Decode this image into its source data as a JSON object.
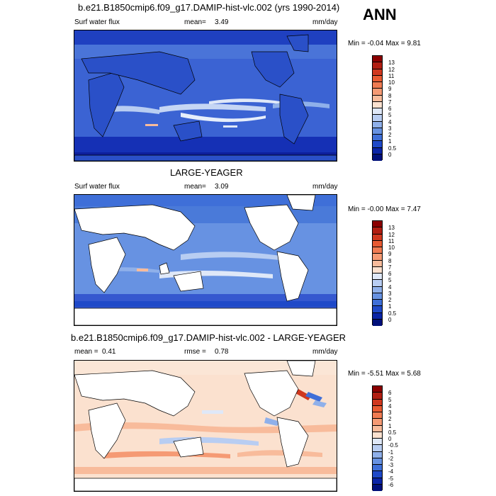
{
  "season": "ANN",
  "panels": [
    {
      "title": "b.e21.B1850cmip6.f09_g17.DAMIP-hist-vlc.002 (yrs 1990-2014)",
      "left_label": "Surf water flux",
      "mean_label": "mean=",
      "mean_value": "3.49",
      "right_label": "mm/day",
      "min_label": "Min = ",
      "min_value": "-0.04",
      "max_label": "Max = ",
      "max_value": "9.81",
      "colorbar_labels": [
        "13",
        "12",
        "11",
        "10",
        "9",
        "8",
        "7",
        "6",
        "5",
        "4",
        "3",
        "2",
        "1",
        "0.5",
        "0"
      ],
      "colorbar_colors": [
        "#8b0000",
        "#b11e12",
        "#d0381f",
        "#e85a32",
        "#f07b52",
        "#f59a74",
        "#f8bb9b",
        "#fbe1cf",
        "#dfe8f8",
        "#b8cdf2",
        "#8fb0ea",
        "#6792e2",
        "#3f6fd8",
        "#1f49c8",
        "#0a24a6",
        "#00107a"
      ]
    },
    {
      "title": "LARGE-YEAGER",
      "left_label": "Surf water flux",
      "mean_label": "mean=",
      "mean_value": "3.09",
      "right_label": "mm/day",
      "min_label": "Min = ",
      "min_value": "-0.00",
      "max_label": "Max = ",
      "max_value": "7.47",
      "colorbar_labels": [
        "13",
        "12",
        "11",
        "10",
        "9",
        "8",
        "7",
        "6",
        "5",
        "4",
        "3",
        "2",
        "1",
        "0.5",
        "0"
      ],
      "colorbar_colors": [
        "#8b0000",
        "#b11e12",
        "#d0381f",
        "#e85a32",
        "#f07b52",
        "#f59a74",
        "#f8bb9b",
        "#fbe1cf",
        "#dfe8f8",
        "#b8cdf2",
        "#8fb0ea",
        "#6792e2",
        "#3f6fd8",
        "#1f49c8",
        "#0a24a6",
        "#00107a"
      ]
    },
    {
      "title": "b.e21.B1850cmip6.f09_g17.DAMIP-hist-vlc.002 - LARGE-YEAGER",
      "left_label": "mean =",
      "mean_label": "rmse =",
      "left_value": "0.41",
      "mean_value": "0.78",
      "right_label": "mm/day",
      "min_label": "Min = ",
      "min_value": "-5.51",
      "max_label": "Max = ",
      "max_value": "5.68",
      "colorbar_labels": [
        "6",
        "5",
        "4",
        "3",
        "2",
        "1",
        "0.5",
        "0",
        "-0.5",
        "-1",
        "-2",
        "-3",
        "-4",
        "-5",
        "-6"
      ],
      "colorbar_colors": [
        "#8b0000",
        "#b11e12",
        "#d0381f",
        "#e85a32",
        "#f07b52",
        "#f59a74",
        "#f8bb9b",
        "#fbe1cf",
        "#dfe8f8",
        "#b8cdf2",
        "#8fb0ea",
        "#6792e2",
        "#3f6fd8",
        "#1f49c8",
        "#0a24a6",
        "#00107a"
      ]
    }
  ]
}
